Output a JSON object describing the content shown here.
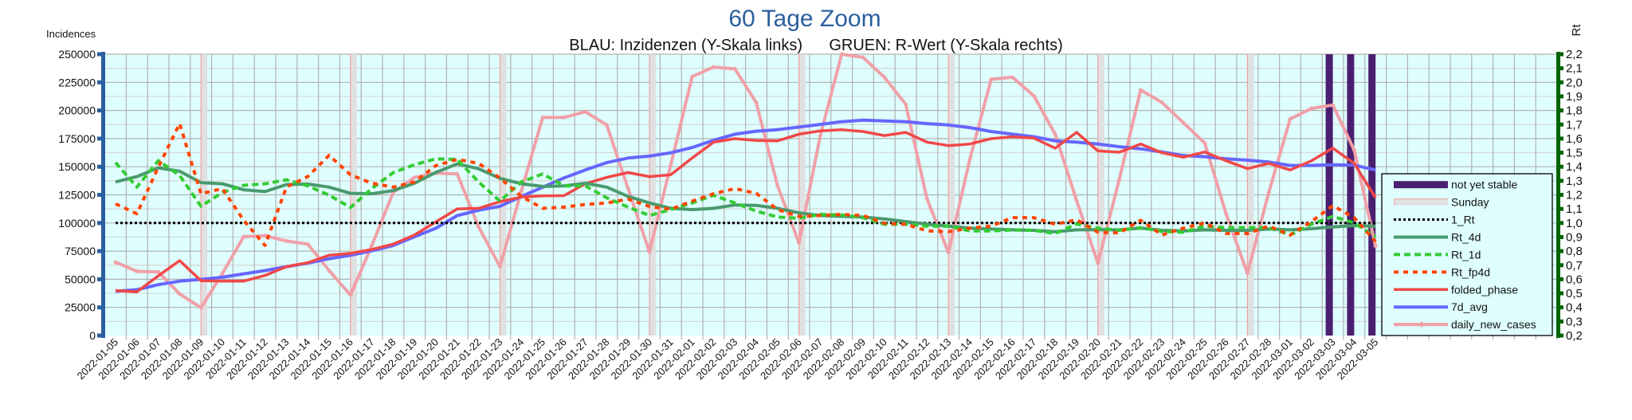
{
  "chart_data": {
    "type": "line",
    "title": "60 Tage Zoom",
    "subtitle": "BLAU: Inzidenzen (Y-Skala links)      GRUEN: R-Wert (Y-Skala rechts)",
    "ylabel_left": "Incidences",
    "ylabel_right": "Rt",
    "ylim_left": [
      0,
      250000
    ],
    "ylim_right": [
      0.2,
      2.2
    ],
    "y_ticks_left": [
      "0",
      "25000",
      "50000",
      "75000",
      "100000",
      "125000",
      "150000",
      "175000",
      "200000",
      "225000",
      "250000"
    ],
    "y_ticks_right": [
      "0,2",
      "0,3",
      "0,4",
      "0,5",
      "0,6",
      "0,7",
      "0,8",
      "0,9",
      "1,0",
      "1,1",
      "1,2",
      "1,3",
      "1,4",
      "1,5",
      "1,6",
      "1,7",
      "1,8",
      "1,9",
      "2,0",
      "2,1",
      "2,2"
    ],
    "grid": true,
    "legend_position": "right",
    "categories": [
      "2022-01-05",
      "2022-01-06",
      "2022-01-07",
      "2022-01-08",
      "2022-01-09",
      "2022-01-10",
      "2022-01-11",
      "2022-01-12",
      "2022-01-13",
      "2022-01-14",
      "2022-01-15",
      "2022-01-16",
      "2022-01-17",
      "2022-01-18",
      "2022-01-19",
      "2022-01-20",
      "2022-01-21",
      "2022-01-22",
      "2022-01-23",
      "2022-01-24",
      "2022-01-25",
      "2022-01-26",
      "2022-01-27",
      "2022-01-28",
      "2022-01-29",
      "2022-01-30",
      "2022-01-31",
      "2022-02-01",
      "2022-02-02",
      "2022-02-03",
      "2022-02-04",
      "2022-02-05",
      "2022-02-06",
      "2022-02-07",
      "2022-02-08",
      "2022-02-09",
      "2022-02-10",
      "2022-02-11",
      "2022-02-12",
      "2022-02-13",
      "2022-02-14",
      "2022-02-15",
      "2022-02-16",
      "2022-02-17",
      "2022-02-18",
      "2022-02-19",
      "2022-02-20",
      "2022-02-21",
      "2022-02-22",
      "2022-02-23",
      "2022-02-24",
      "2022-02-25",
      "2022-02-26",
      "2022-02-27",
      "2022-02-28",
      "2022-03-01",
      "2022-03-02",
      "2022-03-03",
      "2022-03-04",
      "2022-03-05"
    ],
    "bar_series": [
      {
        "name": "not yet stable",
        "color": "#4b1f6f",
        "categories": [
          "2022-03-03",
          "2022-03-04",
          "2022-03-05"
        ]
      },
      {
        "name": "Sunday",
        "color": "#e0e0e0",
        "border": "#f0a0a0",
        "categories": [
          "2022-01-09",
          "2022-01-16",
          "2022-01-23",
          "2022-01-30",
          "2022-02-06",
          "2022-02-13",
          "2022-02-20",
          "2022-02-27"
        ]
      }
    ],
    "series": [
      {
        "name": "1_Rt",
        "axis": "right",
        "color": "#000000",
        "style": "dotted",
        "values": [
          1,
          1,
          1,
          1,
          1,
          1,
          1,
          1,
          1,
          1,
          1,
          1,
          1,
          1,
          1,
          1,
          1,
          1,
          1,
          1,
          1,
          1,
          1,
          1,
          1,
          1,
          1,
          1,
          1,
          1,
          1,
          1,
          1,
          1,
          1,
          1,
          1,
          1,
          1,
          1,
          1,
          1,
          1,
          1,
          1,
          1,
          1,
          1,
          1,
          1,
          1,
          1,
          1,
          1,
          1,
          1,
          1,
          1,
          1,
          1
        ]
      },
      {
        "name": "Rt_4d",
        "axis": "right",
        "color": "#4a9a6e",
        "style": "solid",
        "values": [
          1.292,
          1.33,
          1.392,
          1.368,
          1.287,
          1.279,
          1.236,
          1.223,
          1.273,
          1.277,
          1.255,
          1.211,
          1.208,
          1.23,
          1.283,
          1.36,
          1.42,
          1.386,
          1.317,
          1.279,
          1.26,
          1.264,
          1.283,
          1.255,
          1.189,
          1.142,
          1.104,
          1.095,
          1.104,
          1.128,
          1.125,
          1.104,
          1.072,
          1.053,
          1.047,
          1.042,
          1.029,
          1.01,
          0.991,
          0.978,
          0.963,
          0.957,
          0.951,
          0.948,
          0.938,
          0.951,
          0.953,
          0.951,
          0.963,
          0.948,
          0.944,
          0.951,
          0.948,
          0.948,
          0.957,
          0.951,
          0.959,
          0.972,
          0.982,
          0.976
        ]
      },
      {
        "name": "Rt_1d",
        "axis": "right",
        "color": "#33cc33",
        "style": "dashed",
        "values": [
          1.43,
          1.255,
          1.443,
          1.339,
          1.119,
          1.217,
          1.268,
          1.279,
          1.307,
          1.264,
          1.198,
          1.11,
          1.245,
          1.358,
          1.415,
          1.456,
          1.452,
          1.292,
          1.155,
          1.292,
          1.349,
          1.264,
          1.264,
          1.179,
          1.113,
          1.053,
          1.095,
          1.142,
          1.198,
          1.142,
          1.085,
          1.042,
          1.034,
          1.061,
          1.057,
          1.038,
          0.991,
          0.991,
          0.978,
          0.978,
          0.944,
          0.944,
          0.95,
          0.948,
          0.925,
          0.993,
          0.963,
          0.948,
          0.967,
          0.94,
          0.934,
          0.978,
          0.967,
          0.967,
          0.967,
          0.915,
          0.991,
          1.047,
          1.0,
          0.902
        ]
      },
      {
        "name": "Rt_fp4d",
        "axis": "right",
        "color": "#ff4500",
        "style": "dashed",
        "values": [
          1.136,
          1.066,
          1.396,
          1.707,
          1.208,
          1.245,
          1.019,
          0.84,
          1.255,
          1.33,
          1.481,
          1.343,
          1.283,
          1.255,
          1.292,
          1.408,
          1.452,
          1.424,
          1.32,
          1.189,
          1.104,
          1.113,
          1.132,
          1.142,
          1.17,
          1.117,
          1.098,
          1.155,
          1.208,
          1.245,
          1.211,
          1.095,
          1.047,
          1.053,
          1.061,
          1.053,
          0.997,
          0.991,
          0.944,
          0.938,
          0.963,
          0.978,
          1.038,
          1.038,
          0.991,
          1.023,
          0.934,
          0.929,
          1.019,
          0.915,
          0.963,
          1.0,
          0.925,
          0.925,
          0.978,
          0.915,
          1.01,
          1.123,
          1.038,
          0.868
        ]
      },
      {
        "name": "folded_phase",
        "axis": "left",
        "color": "#f04848",
        "style": "solid",
        "values": [
          40000,
          38800,
          53000,
          66600,
          48700,
          48300,
          48300,
          53400,
          61200,
          64700,
          71300,
          73000,
          76500,
          81200,
          89400,
          101000,
          112500,
          113000,
          118900,
          123100,
          124100,
          124300,
          134900,
          140500,
          144800,
          141200,
          142900,
          157700,
          171800,
          174900,
          173300,
          173000,
          178900,
          181900,
          182900,
          181300,
          177700,
          180500,
          171800,
          168800,
          170200,
          174900,
          176600,
          175400,
          166500,
          180500,
          164000,
          162900,
          170200,
          162400,
          158400,
          163100,
          155300,
          148300,
          153000,
          147100,
          155300,
          166500,
          153000,
          122400
        ]
      },
      {
        "name": "7d_avg",
        "axis": "left",
        "color": "#6666ff",
        "style": "solid",
        "values": [
          39300,
          40700,
          45200,
          48300,
          49900,
          51800,
          54800,
          57700,
          61200,
          64300,
          68300,
          71300,
          75300,
          80000,
          87800,
          95300,
          106600,
          111300,
          114900,
          123600,
          131800,
          140100,
          147100,
          153700,
          157700,
          159400,
          162400,
          167100,
          173500,
          178900,
          181600,
          182900,
          185300,
          187600,
          190000,
          191400,
          190700,
          190000,
          188300,
          187100,
          184800,
          181300,
          178900,
          176600,
          173000,
          171800,
          170200,
          167800,
          165900,
          163100,
          160000,
          158900,
          157000,
          155800,
          154200,
          151100,
          151100,
          151800,
          151400,
          147100
        ]
      },
      {
        "name": "daily_new_cases",
        "axis": "left",
        "color": "#f0a0a8",
        "style": "solid-marker",
        "values": [
          65200,
          57000,
          56500,
          37000,
          24700,
          55000,
          87800,
          88700,
          84000,
          81200,
          57700,
          36000,
          80000,
          127100,
          140500,
          144300,
          143600,
          96500,
          61200,
          128300,
          193800,
          193800,
          198900,
          187100,
          130600,
          74200,
          151800,
          230000,
          238500,
          237000,
          207000,
          133000,
          82400,
          177700,
          250000,
          247200,
          229500,
          205500,
          121200,
          73700,
          156600,
          227700,
          229500,
          213000,
          178900,
          120000,
          64300,
          138900,
          218200,
          207100,
          189000,
          171100,
          108200,
          55300,
          127100,
          192400,
          201800,
          204800,
          164800,
          79300
        ]
      }
    ],
    "legend": [
      "not yet stable",
      "Sunday",
      "1_Rt",
      "Rt_4d",
      "Rt_1d",
      "Rt_fp4d",
      "folded_phase",
      "7d_avg",
      "daily_new_cases"
    ]
  },
  "colors": {
    "plot_bg": "#dfffff",
    "left_axis": "#2b5f9e",
    "right_axis": "#006400",
    "title": "#2b5f9e"
  }
}
